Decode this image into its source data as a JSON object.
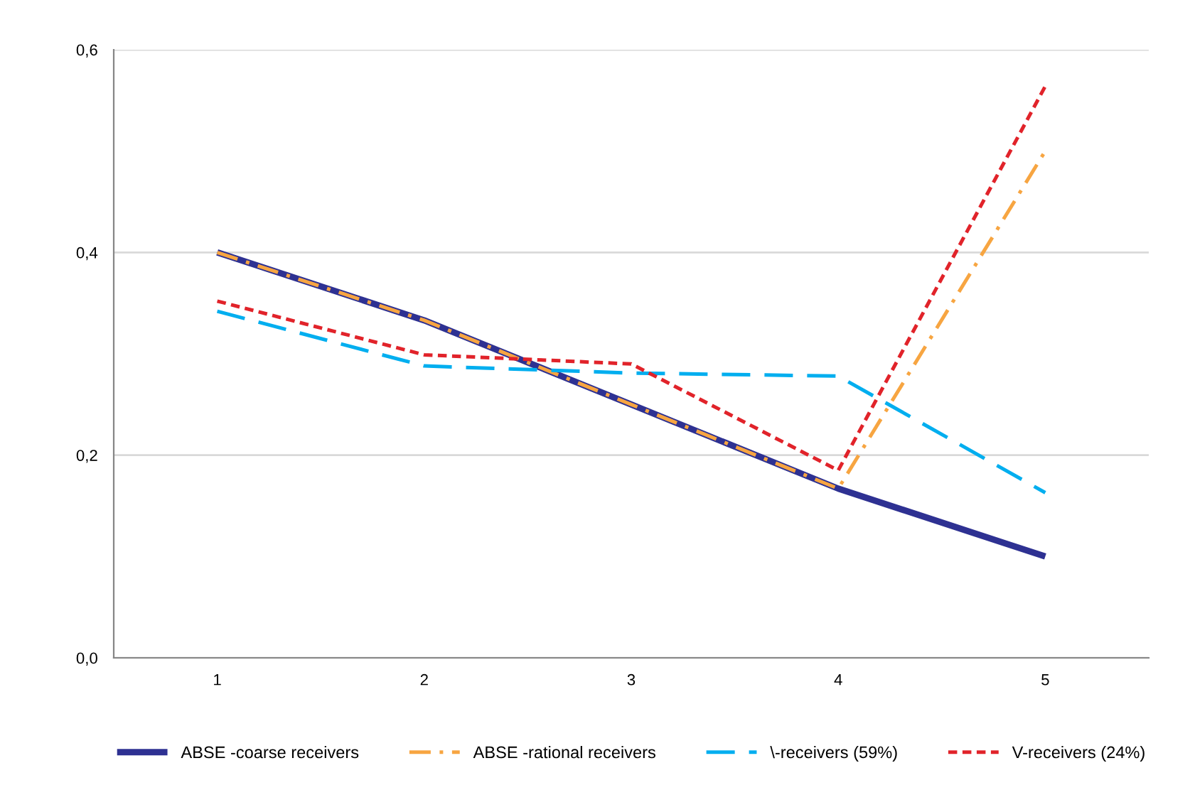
{
  "chart_data": {
    "type": "line",
    "categories": [
      "1",
      "2",
      "3",
      "4",
      "5"
    ],
    "series": [
      {
        "name": "ABSE -coarse receivers",
        "color": "#2e3192",
        "line_style": "solid",
        "values": [
          0.4,
          0.333,
          0.25,
          0.167,
          0.1
        ]
      },
      {
        "name": "ABSE -rational receivers",
        "color": "#f7a541",
        "line_style": "dashdot",
        "values": [
          0.4,
          0.333,
          0.25,
          0.167,
          0.5
        ]
      },
      {
        "name": "\\-receivers (59%)",
        "color": "#00aeef",
        "line_style": "dashed",
        "values": [
          0.342,
          0.288,
          0.281,
          0.278,
          0.163
        ]
      },
      {
        "name": "V-receivers (24%)",
        "color": "#e1232a",
        "line_style": "dotted",
        "values": [
          0.352,
          0.299,
          0.29,
          0.185,
          0.564
        ]
      }
    ],
    "ylim": [
      0,
      0.6
    ],
    "yticks": [
      {
        "value": 0,
        "label": "0,0"
      },
      {
        "value": 0.2,
        "label": "0,2"
      },
      {
        "value": 0.4,
        "label": "0,4"
      },
      {
        "value": 0.6,
        "label": "0,6"
      }
    ],
    "grid": "y",
    "legend": "bottom",
    "marker": "none"
  }
}
